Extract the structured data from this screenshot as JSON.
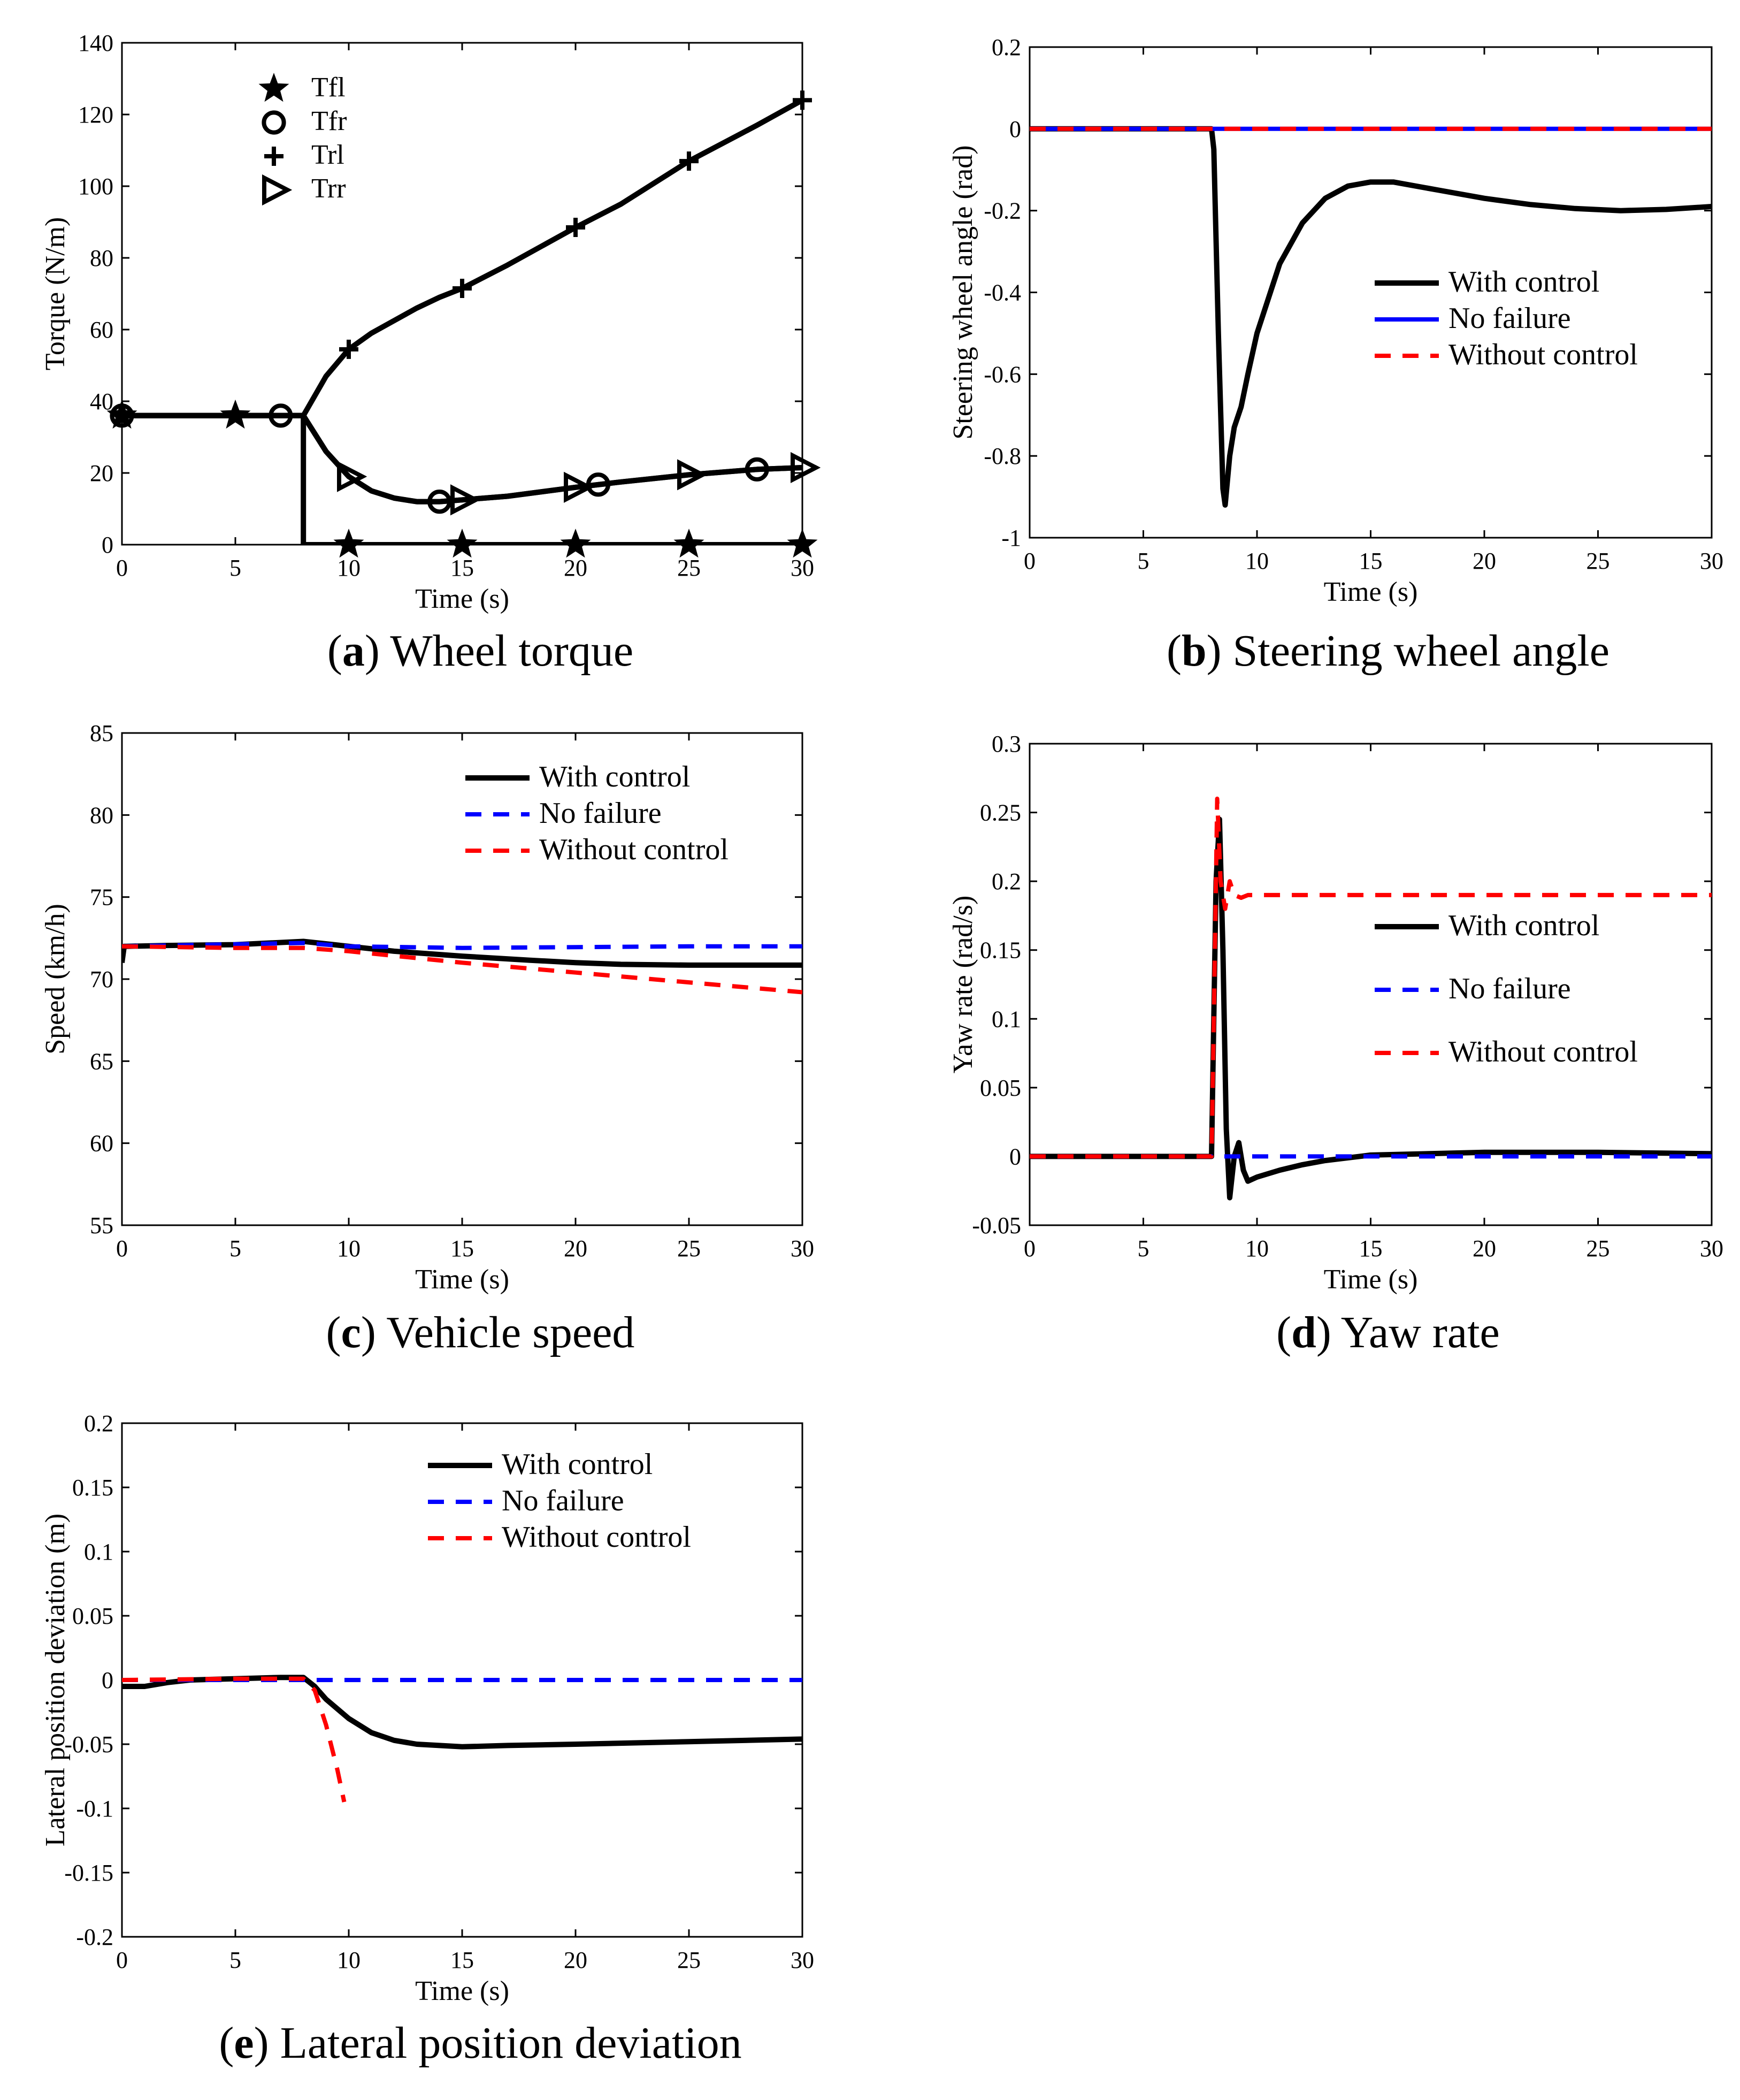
{
  "chart_data": [
    {
      "id": "a",
      "type": "line",
      "caption": {
        "letter": "a",
        "text": "Wheel torque"
      },
      "xlabel": "Time (s)",
      "ylabel": "Torque (N/m)",
      "xlim": [
        0,
        30
      ],
      "ylim": [
        0,
        140
      ],
      "xticks": [
        "0",
        "5",
        "10",
        "15",
        "20",
        "25",
        "30"
      ],
      "yticks": [
        "0",
        "20",
        "40",
        "60",
        "80",
        "100",
        "120",
        "140"
      ],
      "legend": {
        "position": "top-left",
        "style": "marker"
      },
      "series": [
        {
          "name": "Tfl",
          "color": "#000000",
          "dash": "solid",
          "marker": "star",
          "x": [
            0,
            5,
            7,
            8,
            8,
            10,
            15,
            20,
            25,
            30
          ],
          "y": [
            36,
            36,
            36,
            36,
            0,
            0,
            0,
            0,
            0,
            0
          ],
          "marker_x": [
            0,
            5,
            10,
            15,
            20,
            25,
            30
          ]
        },
        {
          "name": "Tfr",
          "color": "#000000",
          "dash": "solid",
          "marker": "circle",
          "x": [
            0,
            7,
            8,
            9,
            10,
            11,
            12,
            13,
            14,
            15,
            17,
            20,
            22,
            25,
            28,
            30
          ],
          "y": [
            36,
            36,
            36,
            26,
            19,
            15,
            13,
            12,
            12,
            12.5,
            13.5,
            16,
            17.5,
            19.5,
            21,
            21.5
          ],
          "marker_x": [
            0,
            7,
            14,
            21,
            28
          ]
        },
        {
          "name": "Trl",
          "color": "#000000",
          "dash": "solid",
          "marker": "plus",
          "x": [
            0,
            7,
            8,
            9,
            10,
            11,
            12,
            13,
            14,
            15,
            17,
            20,
            22,
            25,
            28,
            30
          ],
          "y": [
            36,
            36,
            36,
            47,
            54.5,
            59,
            62.5,
            66,
            69,
            71.5,
            78,
            88.5,
            95,
            107,
            117,
            124
          ],
          "marker_x": [
            10,
            15,
            20,
            25,
            30
          ]
        },
        {
          "name": "Trr",
          "color": "#000000",
          "dash": "solid",
          "marker": "triangle-right",
          "x": [
            0,
            7,
            8,
            9,
            10,
            11,
            12,
            13,
            14,
            15,
            17,
            20,
            22,
            25,
            28,
            30
          ],
          "y": [
            36,
            36,
            36,
            26,
            19,
            15,
            13,
            12,
            12,
            12.5,
            13.5,
            16,
            17.5,
            19.5,
            21,
            21.5
          ],
          "marker_x": [
            10,
            15,
            20,
            25,
            30
          ]
        }
      ]
    },
    {
      "id": "b",
      "type": "line",
      "caption": {
        "letter": "b",
        "text": "Steering wheel angle"
      },
      "xlabel": "Time (s)",
      "ylabel": "Steering wheel angle (rad)",
      "xlim": [
        0,
        30
      ],
      "ylim": [
        -1,
        0.2
      ],
      "xticks": [
        "0",
        "5",
        "10",
        "15",
        "20",
        "25",
        "30"
      ],
      "yticks": [
        "-1",
        "-0.8",
        "-0.6",
        "-0.4",
        "-0.2",
        "0",
        "0.2"
      ],
      "legend": {
        "position": "center-right",
        "style": "line"
      },
      "series": [
        {
          "name": "With control",
          "color": "#000000",
          "dash": "solid",
          "x": [
            0,
            8,
            8.1,
            8.3,
            8.5,
            8.6,
            8.8,
            9.0,
            9.3,
            9.6,
            10,
            11,
            12,
            13,
            14,
            15,
            16,
            18,
            20,
            22,
            24,
            26,
            28,
            30
          ],
          "y": [
            0,
            0,
            -0.05,
            -0.5,
            -0.88,
            -0.92,
            -0.8,
            -0.73,
            -0.68,
            -0.6,
            -0.5,
            -0.33,
            -0.23,
            -0.17,
            -0.14,
            -0.13,
            -0.13,
            -0.15,
            -0.17,
            -0.185,
            -0.195,
            -0.2,
            -0.197,
            -0.19
          ]
        },
        {
          "name": "No failure",
          "color": "#0000ff",
          "dash": "solid",
          "x": [
            0,
            30
          ],
          "y": [
            0,
            0
          ]
        },
        {
          "name": "Without control",
          "color": "#ff0000",
          "dash": "dashed",
          "x": [
            0,
            30
          ],
          "y": [
            0,
            0
          ]
        }
      ]
    },
    {
      "id": "c",
      "type": "line",
      "caption": {
        "letter": "c",
        "text": "Vehicle speed"
      },
      "xlabel": "Time (s)",
      "ylabel": "Speed (km/h)",
      "xlim": [
        0,
        30
      ],
      "ylim": [
        55,
        85
      ],
      "xticks": [
        "0",
        "5",
        "10",
        "15",
        "20",
        "25",
        "30"
      ],
      "yticks": [
        "55",
        "60",
        "65",
        "70",
        "75",
        "80",
        "85"
      ],
      "legend": {
        "position": "top-right",
        "style": "line"
      },
      "series": [
        {
          "name": "With control",
          "color": "#000000",
          "dash": "solid",
          "x": [
            0,
            0.1,
            0.2,
            2,
            5,
            8,
            10,
            12,
            15,
            18,
            20,
            22,
            25,
            28,
            30
          ],
          "y": [
            71,
            72,
            72,
            72.05,
            72.1,
            72.3,
            72,
            71.7,
            71.4,
            71.15,
            71,
            70.9,
            70.85,
            70.85,
            70.85
          ]
        },
        {
          "name": "No failure",
          "color": "#0000ff",
          "dash": "dashed",
          "x": [
            0,
            8,
            10,
            15,
            20,
            25,
            30
          ],
          "y": [
            72,
            72.2,
            72,
            71.9,
            71.95,
            72,
            72
          ]
        },
        {
          "name": "Without control",
          "color": "#ff0000",
          "dash": "dashed",
          "x": [
            0,
            5,
            8,
            10,
            15,
            20,
            25,
            30
          ],
          "y": [
            72,
            71.9,
            71.9,
            71.7,
            71,
            70.4,
            69.8,
            69.2
          ]
        }
      ]
    },
    {
      "id": "d",
      "type": "line",
      "caption": {
        "letter": "d",
        "text": "Yaw rate"
      },
      "xlabel": "Time (s)",
      "ylabel": "Yaw rate (rad/s)",
      "xlim": [
        0,
        30
      ],
      "ylim": [
        -0.05,
        0.3
      ],
      "xticks": [
        "0",
        "5",
        "10",
        "15",
        "20",
        "25",
        "30"
      ],
      "yticks": [
        "-0.05",
        "0",
        "0.05",
        "0.1",
        "0.15",
        "0.2",
        "0.25",
        "0.3"
      ],
      "legend": {
        "position": "center-right",
        "style": "line"
      },
      "series": [
        {
          "name": "With control",
          "color": "#000000",
          "dash": "solid",
          "x": [
            0,
            8,
            8.05,
            8.2,
            8.35,
            8.5,
            8.65,
            8.8,
            9.0,
            9.2,
            9.4,
            9.6,
            10,
            11,
            12,
            13,
            15,
            20,
            25,
            30
          ],
          "y": [
            0,
            0,
            0.05,
            0.2,
            0.245,
            0.15,
            0.02,
            -0.03,
            0.0,
            0.01,
            -0.01,
            -0.018,
            -0.015,
            -0.01,
            -0.006,
            -0.003,
            0.001,
            0.003,
            0.003,
            0.002
          ]
        },
        {
          "name": "No failure",
          "color": "#0000ff",
          "dash": "dashed",
          "x": [
            0,
            30
          ],
          "y": [
            0,
            0
          ]
        },
        {
          "name": "Without control",
          "color": "#ff0000",
          "dash": "dashed",
          "x": [
            0,
            8,
            8.1,
            8.25,
            8.4,
            8.6,
            8.8,
            9.0,
            9.3,
            9.6,
            10,
            15,
            20,
            25,
            30
          ],
          "y": [
            0,
            0,
            0.1,
            0.26,
            0.2,
            0.18,
            0.2,
            0.19,
            0.188,
            0.19,
            0.19,
            0.19,
            0.19,
            0.19,
            0.19
          ]
        }
      ]
    },
    {
      "id": "e",
      "type": "line",
      "caption": {
        "letter": "e",
        "text": "Lateral position deviation"
      },
      "xlabel": "Time (s)",
      "ylabel": "Lateral position deviation (m)",
      "xlim": [
        0,
        30
      ],
      "ylim": [
        -0.2,
        0.2
      ],
      "xticks": [
        "0",
        "5",
        "10",
        "15",
        "20",
        "25",
        "30"
      ],
      "yticks": [
        "-0.2",
        "-0.15",
        "-0.1",
        "-0.05",
        "0",
        "0.05",
        "0.1",
        "0.15",
        "0.2"
      ],
      "legend": {
        "position": "top-right",
        "style": "line"
      },
      "series": [
        {
          "name": "With control",
          "color": "#000000",
          "dash": "solid",
          "x": [
            0,
            1,
            2,
            3,
            5,
            7,
            8,
            8.5,
            9,
            10,
            11,
            12,
            13,
            14,
            15,
            17,
            20,
            25,
            30
          ],
          "y": [
            -0.005,
            -0.005,
            -0.002,
            0,
            0.001,
            0.002,
            0.002,
            -0.005,
            -0.015,
            -0.03,
            -0.041,
            -0.047,
            -0.05,
            -0.051,
            -0.052,
            -0.051,
            -0.05,
            -0.048,
            -0.046
          ]
        },
        {
          "name": "No failure",
          "color": "#0000ff",
          "dash": "dashed",
          "x": [
            0,
            30
          ],
          "y": [
            0,
            0
          ]
        },
        {
          "name": "Without control",
          "color": "#ff0000",
          "dash": "dashed",
          "x": [
            0,
            5,
            8,
            8.5,
            9,
            9.5,
            9.8
          ],
          "y": [
            0,
            0.001,
            0.001,
            -0.008,
            -0.035,
            -0.07,
            -0.095
          ]
        }
      ]
    }
  ]
}
